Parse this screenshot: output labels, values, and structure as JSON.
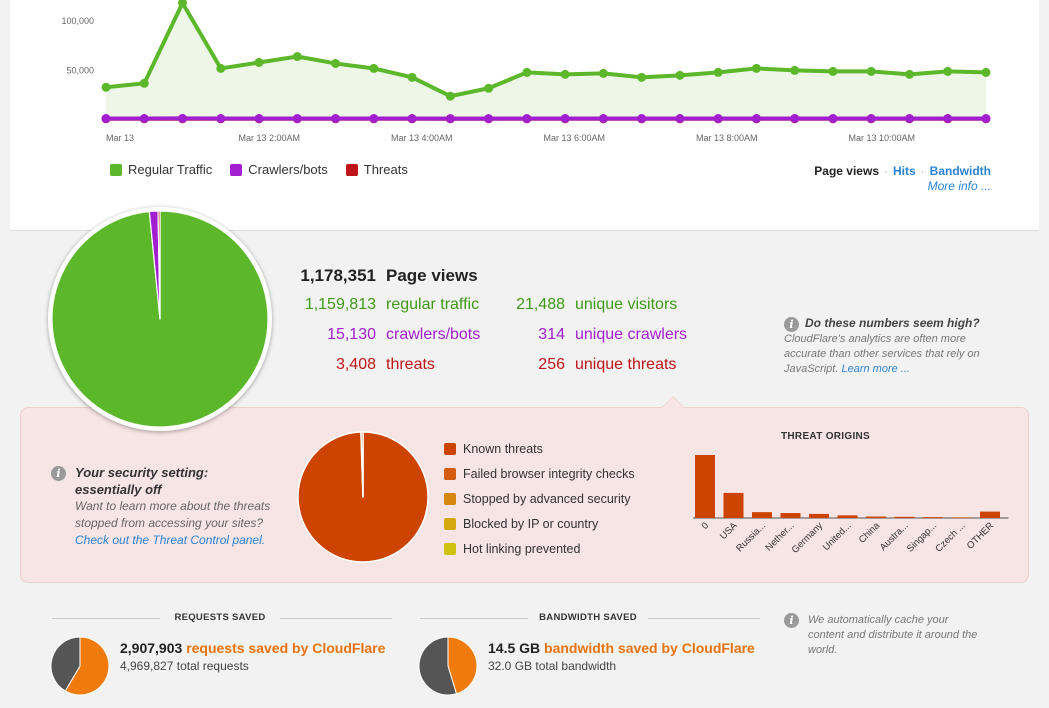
{
  "chart_data": [
    {
      "type": "area",
      "x_ticks": [
        "Mar 13",
        "Mar 13 2:00AM",
        "Mar 13 4:00AM",
        "Mar 13 6:00AM",
        "Mar 13 8:00AM",
        "Mar 13 10:00AM"
      ],
      "y_ticks": [
        "100,000",
        "50,000"
      ],
      "ylim": [
        0,
        120000
      ],
      "series": [
        {
          "name": "Regular Traffic",
          "color": "#5cb82a",
          "values": [
            32000,
            36000,
            117000,
            51000,
            57000,
            63000,
            56000,
            51000,
            42000,
            23000,
            31000,
            47000,
            45000,
            46000,
            42000,
            44000,
            47000,
            51000,
            49000,
            48000,
            48000,
            45000,
            48000,
            47000
          ]
        },
        {
          "name": "Crawlers/bots",
          "color": "#a11fcf",
          "values": [
            500,
            500,
            600,
            500,
            500,
            500,
            500,
            500,
            500,
            400,
            400,
            500,
            500,
            500,
            500,
            500,
            500,
            500,
            500,
            500,
            500,
            500,
            500,
            500
          ]
        },
        {
          "name": "Threats",
          "color": "#c0141a",
          "values": [
            200,
            200,
            200,
            200,
            200,
            200,
            200,
            200,
            200,
            200,
            200,
            200,
            200,
            200,
            200,
            200,
            200,
            200,
            200,
            200,
            200,
            200,
            200,
            200
          ]
        }
      ]
    },
    {
      "type": "pie",
      "slices": [
        {
          "name": "regular traffic",
          "value": 1159813,
          "color": "#5cb82a"
        },
        {
          "name": "crawlers/bots",
          "value": 15130,
          "color": "#a11fcf"
        },
        {
          "name": "threats",
          "value": 3408,
          "color": "#c0141a"
        }
      ]
    },
    {
      "type": "pie",
      "slices": [
        {
          "name": "Known threats",
          "value": 99.5,
          "color": "#cc4400"
        },
        {
          "name": "Failed browser integrity checks",
          "value": 0.5,
          "color": "#d45d12"
        }
      ]
    },
    {
      "type": "bar",
      "title": "THREAT ORIGINS",
      "categories": [
        "0",
        "USA",
        "Russia...",
        "Nether...",
        "Germany",
        "United...",
        "China",
        "Austra...",
        "Singap...",
        "Czech ...",
        "OTHER"
      ],
      "values": [
        1080,
        430,
        100,
        85,
        70,
        45,
        25,
        20,
        15,
        10,
        110
      ],
      "ylim": [
        0,
        1200
      ]
    }
  ],
  "legend": [
    {
      "label": "Regular Traffic",
      "color": "#5cb82a"
    },
    {
      "label": "Crawlers/bots",
      "color": "#a11fcf"
    },
    {
      "label": "Threats",
      "color": "#c0141a"
    }
  ],
  "metric_switch": {
    "current": "Page views",
    "hits": "Hits",
    "bandwidth": "Bandwidth",
    "more": "More info ..."
  },
  "stats": {
    "page_views_num": "1,178,351",
    "page_views_label": "Page views",
    "regular_num": "1,159,813",
    "regular_label": "regular traffic",
    "crawlers_num": "15,130",
    "crawlers_label": "crawlers/bots",
    "threats_num": "3,408",
    "threats_label": "threats",
    "visitors_num": "21,488",
    "visitors_label": "unique visitors",
    "ucrawlers_num": "314",
    "ucrawlers_label": "unique crawlers",
    "uthreats_num": "256",
    "uthreats_label": "unique threats"
  },
  "high_note": {
    "title": "Do these numbers seem high?",
    "body": "CloudFlare's analytics are often more accurate than other services that rely on JavaScript.",
    "link": "Learn more ..."
  },
  "security": {
    "head1": "Your security setting:",
    "head2": "essentially off",
    "body": "Want to learn more about the threats stopped from accessing your sites?",
    "link": "Check out the Threat Control panel."
  },
  "threat_legend": [
    {
      "label": "Known threats",
      "color": "#cc4400"
    },
    {
      "label": "Failed browser integrity checks",
      "color": "#d45d12"
    },
    {
      "label": "Stopped by advanced security",
      "color": "#d4860e"
    },
    {
      "label": "Blocked by IP or country",
      "color": "#d4a80e"
    },
    {
      "label": "Hot linking prevented",
      "color": "#cfc20e"
    }
  ],
  "origins_title": "THREAT ORIGINS",
  "requests_saved": {
    "title": "REQUESTS SAVED",
    "num": "2,907,903",
    "label": "requests saved by CloudFlare",
    "total_num": "4,969,827",
    "total_label": "total requests",
    "fraction": 0.585
  },
  "bandwidth_saved": {
    "title": "BANDWIDTH SAVED",
    "num": "14.5 GB",
    "label": "bandwidth saved by CloudFlare",
    "total_num": "32.0 GB",
    "total_label": "total bandwidth",
    "fraction": 0.453
  },
  "cache_note": "We automatically cache your content and distribute it around the world.",
  "info_glyph": "i"
}
